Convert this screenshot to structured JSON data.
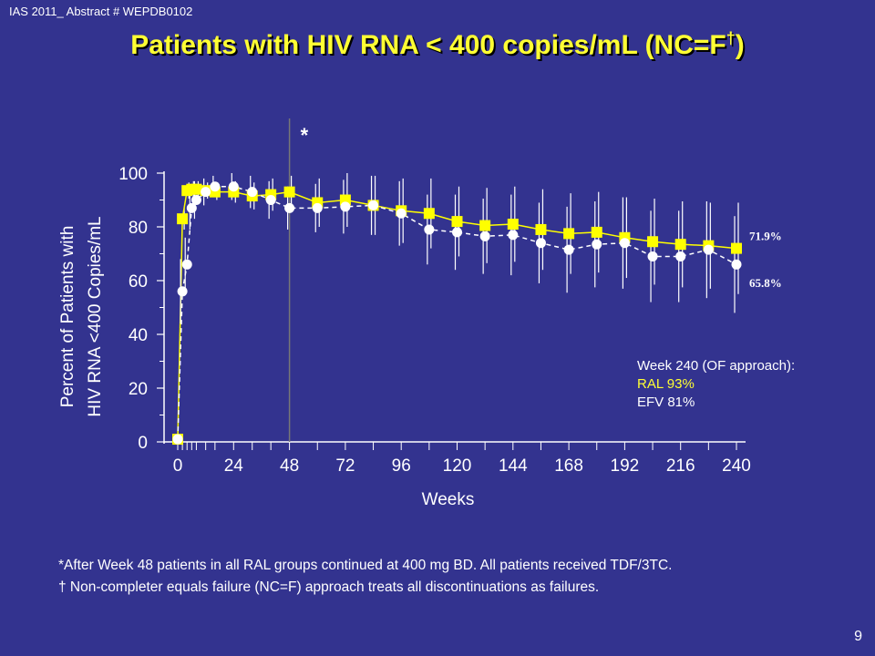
{
  "header": {
    "abstract_ref": "IAS 2011_ Abstract # WEPDB0102",
    "title": "Patients with HIV RNA < 400 copies/mL (NC=F",
    "title_dagger": "†",
    "title_close": ")"
  },
  "annotation": {
    "week240_heading": "Week 240 (OF approach):",
    "ral_line": "RAL 93%",
    "efv_line": "EFV 81%"
  },
  "footnotes": {
    "asterisk_note": "*After Week 48 patients in all RAL groups continued at 400 mg BD. All patients received TDF/3TC.",
    "dagger_note": "† Non-completer equals failure (NC=F) approach treats all discontinuations as failures."
  },
  "page_number": "9",
  "colors": {
    "background": "#33338f",
    "title": "#ffff33",
    "ral_series": "#ffff00",
    "efv_series": "#ffffff",
    "text": "#ffffff"
  },
  "chart_data": {
    "type": "line",
    "title": "",
    "xlabel": "Weeks",
    "ylabel_line1": "Percent of Patients with",
    "ylabel_line2": "HIV RNA <400 Copies/mL",
    "xlim": [
      0,
      240
    ],
    "ylim": [
      0,
      100
    ],
    "x_ticks": [
      "0",
      "24",
      "48",
      "72",
      "96",
      "120",
      "144",
      "168",
      "192",
      "216",
      "240"
    ],
    "y_ticks": [
      "0",
      "20",
      "40",
      "60",
      "80",
      "100"
    ],
    "reference_line": {
      "x": 48,
      "marker": "*"
    },
    "grid": false,
    "series": [
      {
        "marker": "square",
        "color": "#ffff00",
        "line_style": "solid",
        "x": [
          0,
          2,
          4,
          6,
          8,
          12,
          16,
          24,
          32,
          40,
          48,
          60,
          72,
          84,
          96,
          108,
          120,
          132,
          144,
          156,
          168,
          180,
          192,
          204,
          216,
          228,
          240
        ],
        "y": [
          1,
          83,
          93.5,
          94,
          94,
          93.5,
          93,
          93,
          91.5,
          92,
          93,
          89,
          90,
          88,
          86,
          85,
          82,
          80.5,
          81,
          79,
          77.5,
          78,
          76,
          74.5,
          73.5,
          73,
          72
        ],
        "errors": [
          0,
          4,
          3,
          3,
          3,
          3,
          3,
          4,
          5,
          6,
          6,
          9,
          10,
          11,
          12,
          13,
          13,
          14,
          14,
          15,
          15,
          15,
          15,
          16,
          16,
          16,
          17
        ]
      },
      {
        "marker": "circle",
        "color": "#ffffff",
        "line_style": "dashed",
        "x": [
          0,
          2,
          4,
          6,
          8,
          12,
          16,
          24,
          32,
          40,
          48,
          60,
          72,
          84,
          96,
          108,
          120,
          132,
          144,
          156,
          168,
          180,
          192,
          204,
          216,
          228,
          240
        ],
        "y": [
          1,
          56,
          66,
          87,
          90,
          93,
          95,
          95,
          93,
          90,
          87,
          87,
          87.5,
          88,
          85,
          79,
          78,
          76.5,
          77,
          74,
          71.5,
          73.5,
          74,
          69,
          69,
          71.5,
          66
        ],
        "errors": [
          0,
          12,
          10,
          8,
          7,
          5,
          4,
          5,
          6,
          7,
          8,
          9,
          10,
          11,
          12,
          13,
          14,
          14,
          15,
          15,
          16,
          16,
          17,
          17,
          17,
          18,
          18
        ]
      }
    ],
    "data_labels": [
      {
        "text": "71.9%",
        "x": 240,
        "y": 76.5
      },
      {
        "text": "65.8%",
        "x": 240,
        "y": 59
      }
    ]
  }
}
